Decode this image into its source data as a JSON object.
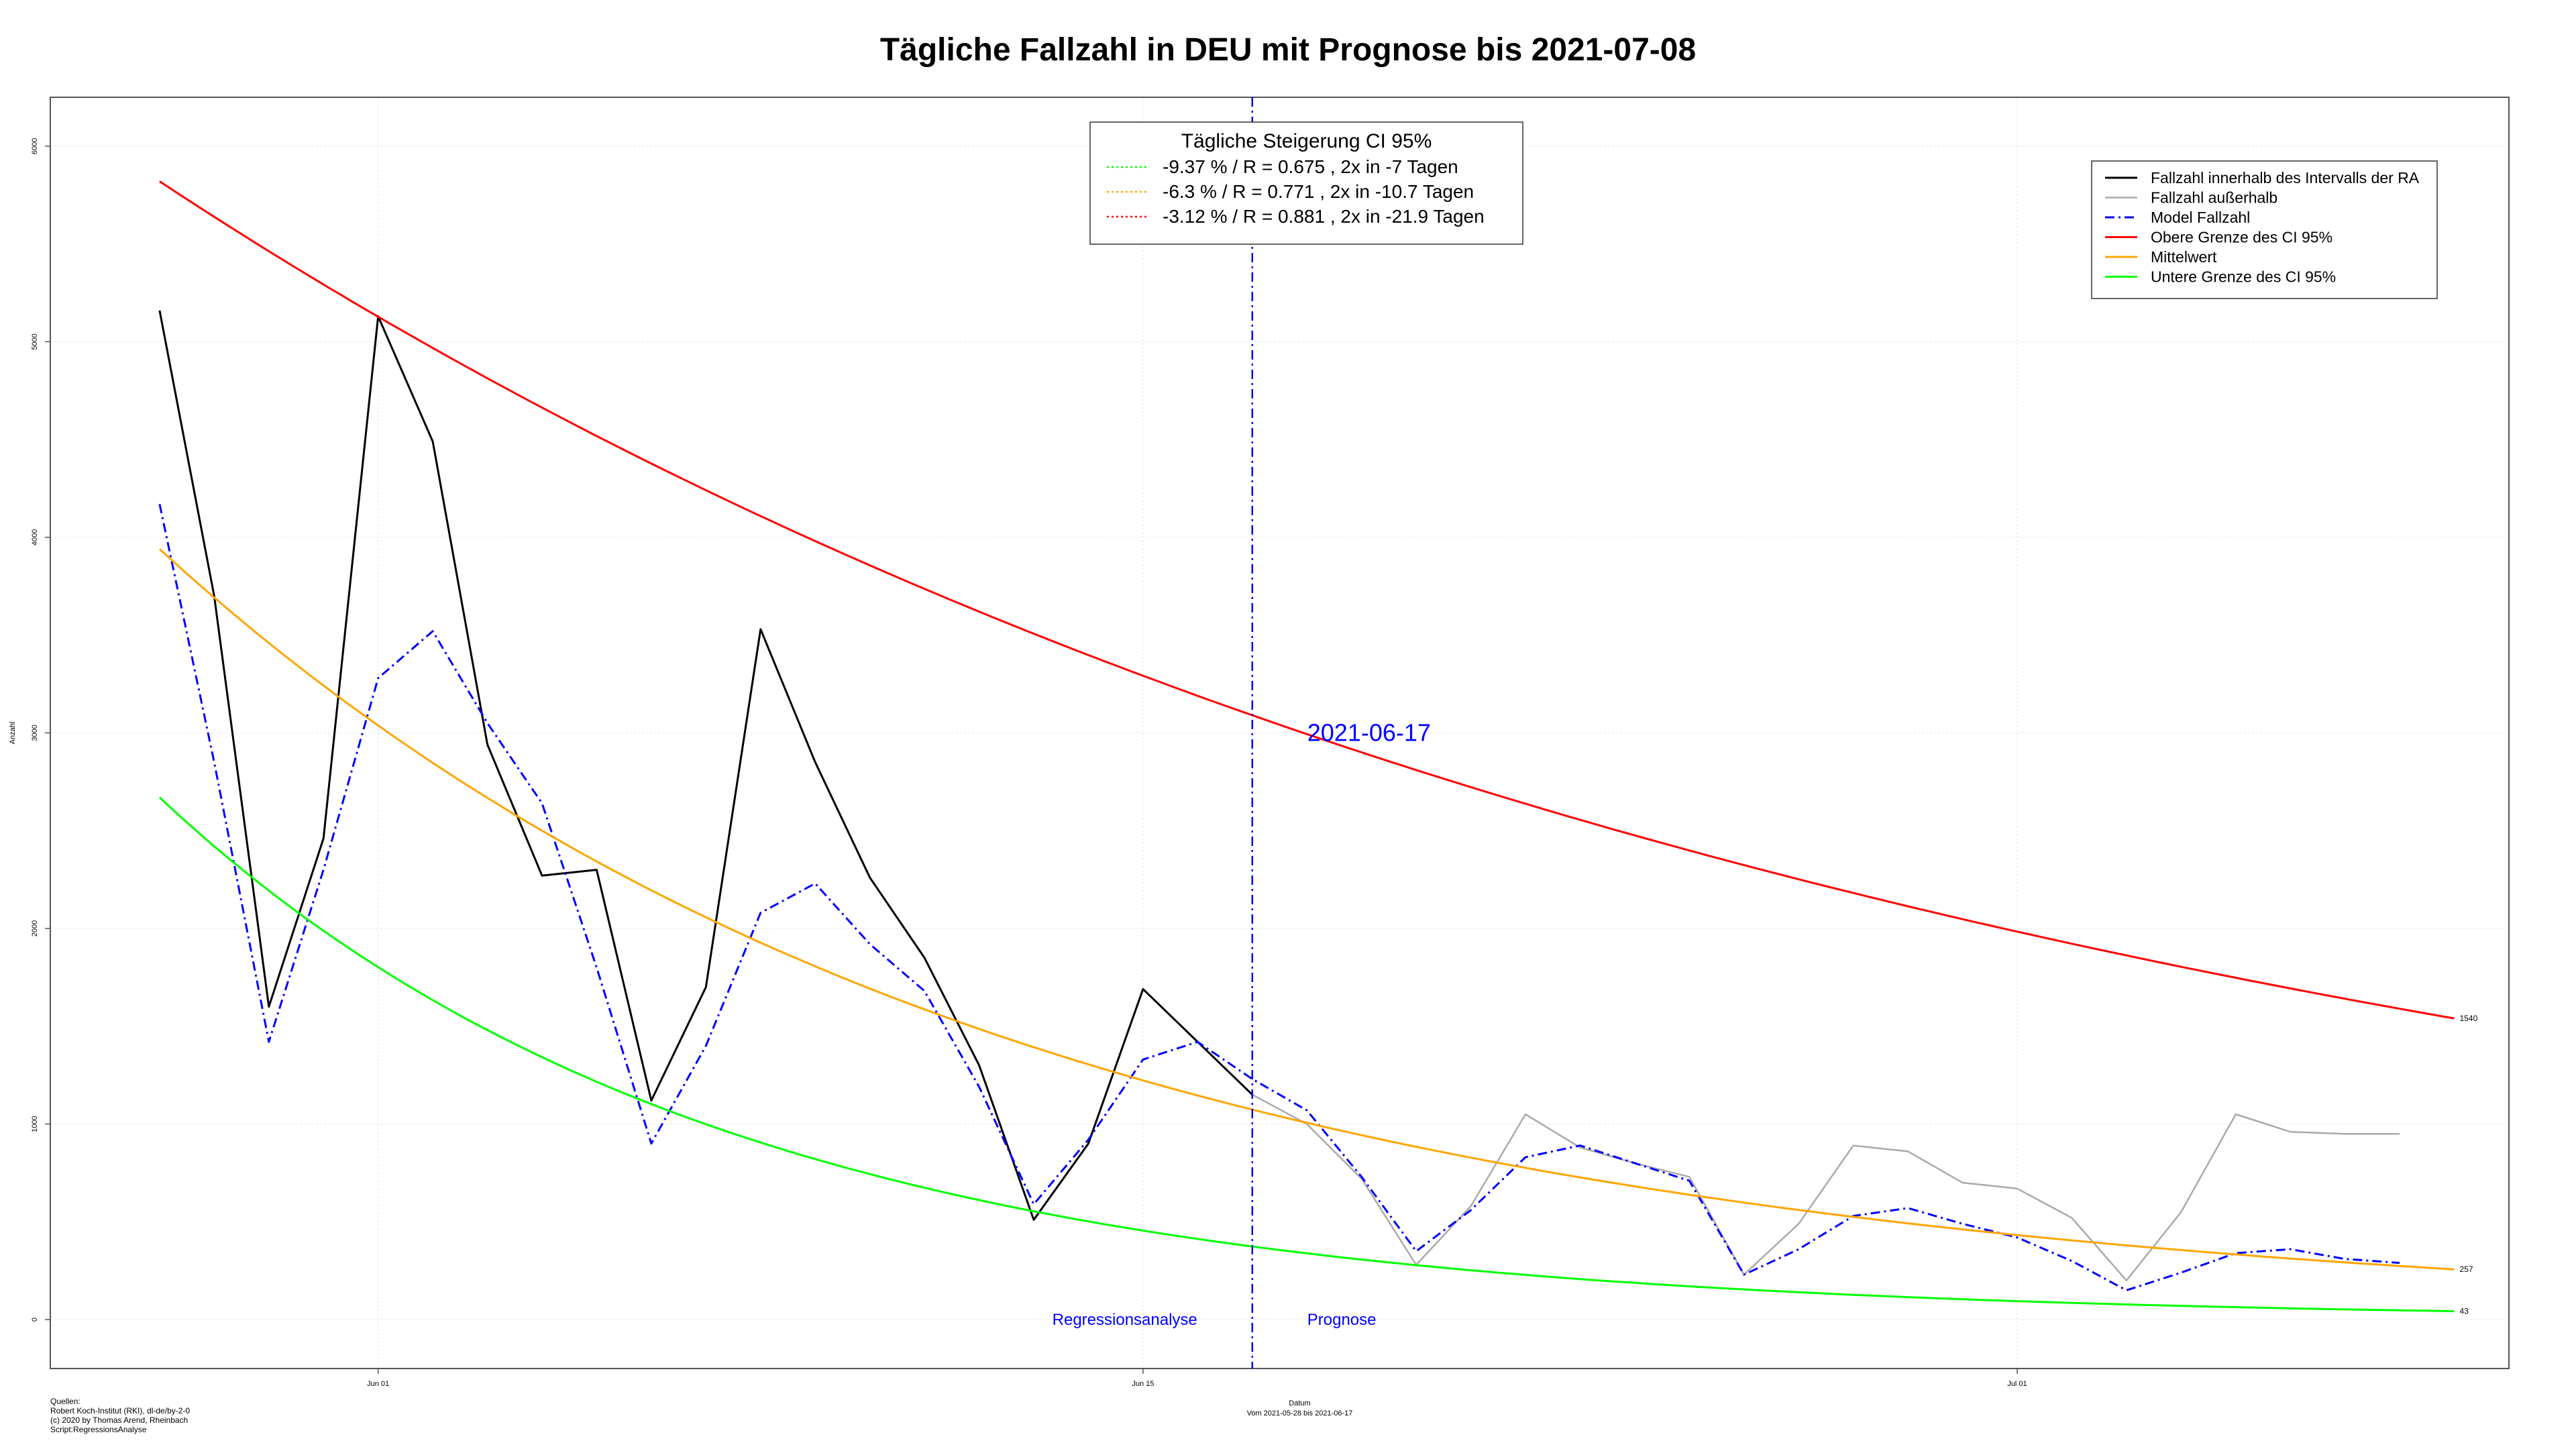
{
  "chart_data": {
    "type": "line",
    "title": "Tägliche Fallzahl in DEU mit Prognose bis 2021-07-08",
    "xlabel": "Datum",
    "x_sublabel": "Vom 2021-05-28 bis 2021-06-17",
    "ylabel": "Anzahl",
    "ylim": [
      -250,
      6250
    ],
    "y_ticks": [
      0,
      1000,
      2000,
      3000,
      4000,
      5000,
      6000
    ],
    "x_day_range": [
      -2,
      43
    ],
    "x_ticks": [
      {
        "label": "Jun 01",
        "day": 4
      },
      {
        "label": "Jun 15",
        "day": 18
      },
      {
        "label": "Jul 01",
        "day": 34
      }
    ],
    "grid": true,
    "start_date": "2021-05-28",
    "cutoff_date": "2021-06-17",
    "cutoff_day": 20,
    "cutoff_color": "#0000ff",
    "region_labels": {
      "left": "Regressionsanalyse",
      "right": "Prognose"
    },
    "series": [
      {
        "name": "Fallzahl innerhalb des Intervalls der RA",
        "color": "#000000",
        "style": "solid",
        "x_day": [
          0,
          1,
          2,
          3,
          4,
          5,
          6,
          7,
          8,
          9,
          10,
          11,
          12,
          13,
          14,
          15,
          16,
          17,
          18,
          19,
          20
        ],
        "values": [
          5160,
          3700,
          1600,
          2460,
          5130,
          4490,
          2940,
          2270,
          2300,
          1120,
          1700,
          3530,
          2850,
          2260,
          1850,
          1300,
          510,
          900,
          1690,
          1420,
          1150
        ]
      },
      {
        "name": "Fallzahl außerhalb",
        "color": "#aaaaaa",
        "style": "solid",
        "x_day": [
          20,
          21,
          22,
          23,
          24,
          25,
          26,
          27,
          28,
          29,
          30,
          31,
          32,
          33,
          34,
          35,
          36,
          37,
          38,
          39,
          40,
          41
        ],
        "values": [
          1150,
          1000,
          720,
          280,
          580,
          1050,
          880,
          800,
          730,
          230,
          490,
          890,
          860,
          700,
          670,
          520,
          200,
          550,
          1050,
          960,
          950,
          950
        ]
      },
      {
        "name": "Model Fallzahl",
        "color": "#0000ff",
        "style": "dashdot",
        "x_day": [
          0,
          1,
          2,
          3,
          4,
          5,
          6,
          7,
          8,
          9,
          10,
          11,
          12,
          13,
          14,
          15,
          16,
          17,
          18,
          19,
          20,
          21,
          22,
          23,
          24,
          25,
          26,
          27,
          28,
          29,
          30,
          31,
          32,
          33,
          34,
          35,
          36,
          37,
          38,
          39,
          40,
          41
        ],
        "values": [
          4170,
          2850,
          1420,
          2300,
          3280,
          3520,
          3050,
          2640,
          1800,
          900,
          1400,
          2080,
          2230,
          1920,
          1680,
          1190,
          590,
          920,
          1330,
          1420,
          1230,
          1070,
          730,
          350,
          560,
          830,
          890,
          800,
          710,
          230,
          360,
          530,
          570,
          490,
          420,
          300,
          150,
          240,
          340,
          360,
          310,
          290
        ]
      },
      {
        "name": "Obere Grenze des CI 95%",
        "color": "#ff0000",
        "style": "solid",
        "curve": {
          "start_day": 0,
          "end_day": 42,
          "start_value": 5820,
          "end_value": 1540
        }
      },
      {
        "name": "Mittelwert",
        "color": "#ffa500",
        "style": "solid",
        "curve": {
          "start_day": 0,
          "end_day": 42,
          "start_value": 3940,
          "end_value": 257
        }
      },
      {
        "name": "Untere Grenze des CI 95%",
        "color": "#00ff00",
        "style": "solid",
        "curve": {
          "start_day": 0,
          "end_day": 42,
          "start_value": 2670,
          "end_value": 43
        }
      }
    ],
    "end_labels": [
      {
        "text": "1540",
        "value": 1540,
        "color": "#ff0000"
      },
      {
        "text": "257",
        "value": 257,
        "color": "#ffa500"
      },
      {
        "text": "43",
        "value": 43,
        "color": "#00ff00"
      }
    ],
    "ci_box": {
      "title": "Tägliche Steigerung CI  95%",
      "items": [
        {
          "text": "-9.37 % / R = 0.675 , 2x in -7 Tagen",
          "color": "#00ff00"
        },
        {
          "text": "-6.3 % / R = 0.771 , 2x in -10.7 Tagen",
          "color": "#ffa500"
        },
        {
          "text": "-3.12 % / R = 0.881 , 2x in -21.9 Tagen",
          "color": "#ff0000"
        }
      ]
    },
    "legend_position": "top-right"
  },
  "source_note": [
    "Quellen:",
    "Robert Koch-Institut (RKI), dl-de/by-2-0",
    "(c) 2020 by Thomas Arend, Rheinbach",
    "Script:RegressionsAnalyse"
  ]
}
